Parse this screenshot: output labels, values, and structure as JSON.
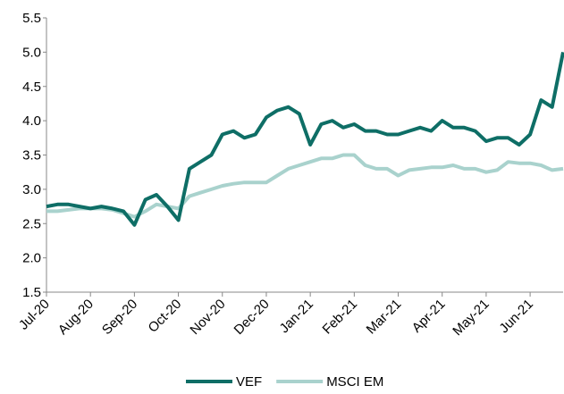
{
  "chart_data": {
    "type": "line",
    "categories": [
      "Jul-20",
      null,
      null,
      null,
      "Aug-20",
      null,
      null,
      null,
      "Sep-20",
      null,
      null,
      null,
      "Oct-20",
      null,
      null,
      null,
      "Nov-20",
      null,
      null,
      null,
      "Dec-20",
      null,
      null,
      null,
      "Jan-21",
      null,
      null,
      null,
      "Feb-21",
      null,
      null,
      null,
      "Mar-21",
      null,
      null,
      null,
      "Apr-21",
      null,
      null,
      null,
      "May-21",
      null,
      null,
      null,
      "Jun-21",
      null,
      null,
      null
    ],
    "series": [
      {
        "name": "VEF",
        "color": "#0e6e66",
        "values": [
          2.75,
          2.78,
          2.78,
          2.75,
          2.72,
          2.75,
          2.72,
          2.68,
          2.48,
          2.85,
          2.92,
          2.75,
          2.55,
          3.3,
          3.4,
          3.5,
          3.8,
          3.85,
          3.75,
          3.8,
          4.05,
          4.15,
          4.2,
          4.1,
          3.65,
          3.95,
          4.0,
          3.9,
          3.95,
          3.85,
          3.85,
          3.8,
          3.8,
          3.85,
          3.9,
          3.85,
          4.0,
          3.9,
          3.9,
          3.85,
          3.7,
          3.75,
          3.75,
          3.65,
          3.8,
          4.3,
          4.2,
          5.0
        ]
      },
      {
        "name": "MSCI EM",
        "color": "#a9d2cd",
        "values": [
          2.68,
          2.68,
          2.7,
          2.72,
          2.72,
          2.72,
          2.7,
          2.65,
          2.6,
          2.68,
          2.78,
          2.75,
          2.72,
          2.9,
          2.95,
          3.0,
          3.05,
          3.08,
          3.1,
          3.1,
          3.1,
          3.2,
          3.3,
          3.35,
          3.4,
          3.45,
          3.45,
          3.5,
          3.5,
          3.35,
          3.3,
          3.3,
          3.2,
          3.28,
          3.3,
          3.32,
          3.32,
          3.35,
          3.3,
          3.3,
          3.25,
          3.28,
          3.4,
          3.38,
          3.38,
          3.35,
          3.28,
          3.3
        ]
      }
    ],
    "ylim": [
      1.5,
      5.5
    ],
    "yticks": [
      1.5,
      {
        "value": 2,
        "label": "2.0"
      },
      2.5,
      {
        "value": 3,
        "label": "3.0"
      },
      3.5,
      {
        "value": 4,
        "label": "4.0"
      },
      4.5,
      {
        "value": 5,
        "label": "5.0"
      },
      5.5
    ],
    "grid": false
  }
}
